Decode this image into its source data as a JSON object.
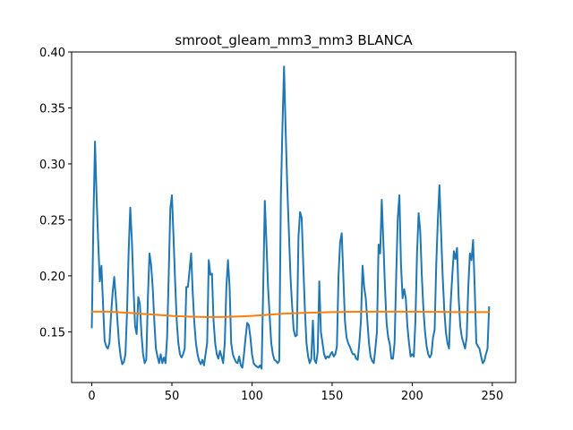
{
  "chart_data": {
    "type": "line",
    "title": "smroot_gleam_mm3_mm3 BLANCA",
    "xlabel": "",
    "ylabel": "",
    "xlim": [
      -12.6,
      264.6
    ],
    "ylim": [
      0.1047,
      0.4
    ],
    "xticks": [
      0,
      50,
      100,
      150,
      200,
      250
    ],
    "yticks": [
      0.15,
      0.2,
      0.25,
      0.3,
      0.35,
      0.4
    ],
    "ytick_labels": [
      "0.15",
      "0.20",
      "0.25",
      "0.30",
      "0.35",
      "0.40"
    ],
    "grid": false,
    "legend": "none",
    "series": [
      {
        "color": "#1f77b4",
        "points": [
          [
            0,
            0.154
          ],
          [
            1,
            0.25
          ],
          [
            2,
            0.32
          ],
          [
            3,
            0.27
          ],
          [
            4,
            0.23
          ],
          [
            5,
            0.195
          ],
          [
            6,
            0.209
          ],
          [
            7,
            0.175
          ],
          [
            8,
            0.142
          ],
          [
            9,
            0.137
          ],
          [
            10,
            0.135
          ],
          [
            11,
            0.14
          ],
          [
            12,
            0.165
          ],
          [
            13,
            0.185
          ],
          [
            14,
            0.199
          ],
          [
            15,
            0.18
          ],
          [
            16,
            0.16
          ],
          [
            17,
            0.14
          ],
          [
            18,
            0.128
          ],
          [
            19,
            0.121
          ],
          [
            20,
            0.123
          ],
          [
            21,
            0.13
          ],
          [
            22,
            0.168
          ],
          [
            23,
            0.222
          ],
          [
            24,
            0.261
          ],
          [
            25,
            0.232
          ],
          [
            26,
            0.19
          ],
          [
            27,
            0.155
          ],
          [
            28,
            0.148
          ],
          [
            29,
            0.181
          ],
          [
            30,
            0.175
          ],
          [
            31,
            0.148
          ],
          [
            32,
            0.13
          ],
          [
            33,
            0.122
          ],
          [
            34,
            0.125
          ],
          [
            35,
            0.18
          ],
          [
            36,
            0.22
          ],
          [
            37,
            0.21
          ],
          [
            38,
            0.19
          ],
          [
            39,
            0.16
          ],
          [
            40,
            0.135
          ],
          [
            41,
            0.128
          ],
          [
            42,
            0.122
          ],
          [
            43,
            0.13
          ],
          [
            44,
            0.122
          ],
          [
            45,
            0.127
          ],
          [
            46,
            0.122
          ],
          [
            47,
            0.145
          ],
          [
            48,
            0.2
          ],
          [
            49,
            0.26
          ],
          [
            50,
            0.272
          ],
          [
            51,
            0.235
          ],
          [
            52,
            0.195
          ],
          [
            53,
            0.16
          ],
          [
            54,
            0.14
          ],
          [
            55,
            0.13
          ],
          [
            56,
            0.127
          ],
          [
            57,
            0.13
          ],
          [
            58,
            0.135
          ],
          [
            59,
            0.19
          ],
          [
            60,
            0.19
          ],
          [
            61,
            0.205
          ],
          [
            62,
            0.22
          ],
          [
            63,
            0.185
          ],
          [
            64,
            0.158
          ],
          [
            65,
            0.14
          ],
          [
            66,
            0.13
          ],
          [
            67,
            0.124
          ],
          [
            68,
            0.121
          ],
          [
            69,
            0.125
          ],
          [
            70,
            0.12
          ],
          [
            71,
            0.13
          ],
          [
            72,
            0.14
          ],
          [
            73,
            0.214
          ],
          [
            74,
            0.201
          ],
          [
            75,
            0.202
          ],
          [
            76,
            0.16
          ],
          [
            77,
            0.14
          ],
          [
            78,
            0.13
          ],
          [
            79,
            0.126
          ],
          [
            80,
            0.133
          ],
          [
            81,
            0.128
          ],
          [
            82,
            0.122
          ],
          [
            83,
            0.14
          ],
          [
            84,
            0.19
          ],
          [
            85,
            0.214
          ],
          [
            86,
            0.19
          ],
          [
            87,
            0.14
          ],
          [
            88,
            0.13
          ],
          [
            89,
            0.126
          ],
          [
            90,
            0.123
          ],
          [
            91,
            0.122
          ],
          [
            92,
            0.128
          ],
          [
            93,
            0.12
          ],
          [
            94,
            0.118
          ],
          [
            95,
            0.13
          ],
          [
            96,
            0.145
          ],
          [
            97,
            0.158
          ],
          [
            98,
            0.156
          ],
          [
            99,
            0.145
          ],
          [
            100,
            0.13
          ],
          [
            101,
            0.122
          ],
          [
            102,
            0.12
          ],
          [
            103,
            0.119
          ],
          [
            104,
            0.118
          ],
          [
            105,
            0.12
          ],
          [
            106,
            0.117
          ],
          [
            107,
            0.19
          ],
          [
            108,
            0.267
          ],
          [
            109,
            0.23
          ],
          [
            110,
            0.19
          ],
          [
            111,
            0.165
          ],
          [
            112,
            0.14
          ],
          [
            113,
            0.13
          ],
          [
            114,
            0.125
          ],
          [
            115,
            0.124
          ],
          [
            116,
            0.122
          ],
          [
            117,
            0.124
          ],
          [
            118,
            0.27
          ],
          [
            119,
            0.333
          ],
          [
            120,
            0.387
          ],
          [
            121,
            0.33
          ],
          [
            122,
            0.28
          ],
          [
            123,
            0.24
          ],
          [
            124,
            0.2
          ],
          [
            125,
            0.174
          ],
          [
            126,
            0.152
          ],
          [
            127,
            0.146
          ],
          [
            128,
            0.147
          ],
          [
            129,
            0.235
          ],
          [
            130,
            0.257
          ],
          [
            131,
            0.252
          ],
          [
            132,
            0.21
          ],
          [
            133,
            0.17
          ],
          [
            134,
            0.14
          ],
          [
            135,
            0.128
          ],
          [
            136,
            0.122
          ],
          [
            137,
            0.126
          ],
          [
            138,
            0.16
          ],
          [
            139,
            0.125
          ],
          [
            140,
            0.122
          ],
          [
            141,
            0.132
          ],
          [
            142,
            0.195
          ],
          [
            143,
            0.15
          ],
          [
            144,
            0.14
          ],
          [
            145,
            0.13
          ],
          [
            146,
            0.126
          ],
          [
            147,
            0.128
          ],
          [
            148,
            0.127
          ],
          [
            149,
            0.13
          ],
          [
            150,
            0.132
          ],
          [
            151,
            0.128
          ],
          [
            152,
            0.13
          ],
          [
            153,
            0.137
          ],
          [
            154,
            0.2
          ],
          [
            155,
            0.23
          ],
          [
            156,
            0.238
          ],
          [
            157,
            0.2
          ],
          [
            158,
            0.16
          ],
          [
            159,
            0.145
          ],
          [
            160,
            0.14
          ],
          [
            161,
            0.137
          ],
          [
            162,
            0.133
          ],
          [
            163,
            0.13
          ],
          [
            164,
            0.13
          ],
          [
            165,
            0.126
          ],
          [
            166,
            0.125
          ],
          [
            167,
            0.14
          ],
          [
            168,
            0.16
          ],
          [
            169,
            0.209
          ],
          [
            170,
            0.19
          ],
          [
            171,
            0.18
          ],
          [
            172,
            0.16
          ],
          [
            173,
            0.14
          ],
          [
            174,
            0.128
          ],
          [
            175,
            0.124
          ],
          [
            176,
            0.122
          ],
          [
            177,
            0.135
          ],
          [
            178,
            0.15
          ],
          [
            179,
            0.228
          ],
          [
            180,
            0.22
          ],
          [
            181,
            0.268
          ],
          [
            182,
            0.23
          ],
          [
            183,
            0.19
          ],
          [
            184,
            0.158
          ],
          [
            185,
            0.145
          ],
          [
            186,
            0.139
          ],
          [
            187,
            0.126
          ],
          [
            188,
            0.126
          ],
          [
            189,
            0.14
          ],
          [
            190,
            0.2
          ],
          [
            191,
            0.252
          ],
          [
            192,
            0.272
          ],
          [
            193,
            0.21
          ],
          [
            194,
            0.18
          ],
          [
            195,
            0.188
          ],
          [
            196,
            0.18
          ],
          [
            197,
            0.155
          ],
          [
            198,
            0.14
          ],
          [
            199,
            0.128
          ],
          [
            200,
            0.13
          ],
          [
            201,
            0.128
          ],
          [
            202,
            0.16
          ],
          [
            203,
            0.22
          ],
          [
            204,
            0.256
          ],
          [
            205,
            0.24
          ],
          [
            206,
            0.2
          ],
          [
            207,
            0.17
          ],
          [
            208,
            0.15
          ],
          [
            209,
            0.137
          ],
          [
            210,
            0.13
          ],
          [
            211,
            0.127
          ],
          [
            212,
            0.13
          ],
          [
            213,
            0.145
          ],
          [
            214,
            0.152
          ],
          [
            215,
            0.21
          ],
          [
            216,
            0.25
          ],
          [
            217,
            0.281
          ],
          [
            218,
            0.24
          ],
          [
            219,
            0.2
          ],
          [
            220,
            0.17
          ],
          [
            221,
            0.15
          ],
          [
            222,
            0.14
          ],
          [
            223,
            0.135
          ],
          [
            224,
            0.175
          ],
          [
            225,
            0.2
          ],
          [
            226,
            0.222
          ],
          [
            227,
            0.215
          ],
          [
            228,
            0.225
          ],
          [
            229,
            0.18
          ],
          [
            230,
            0.155
          ],
          [
            231,
            0.145
          ],
          [
            232,
            0.14
          ],
          [
            233,
            0.135
          ],
          [
            234,
            0.145
          ],
          [
            235,
            0.19
          ],
          [
            236,
            0.22
          ],
          [
            237,
            0.214
          ],
          [
            238,
            0.232
          ],
          [
            239,
            0.19
          ],
          [
            240,
            0.14
          ],
          [
            241,
            0.137
          ],
          [
            242,
            0.135
          ],
          [
            243,
            0.128
          ],
          [
            244,
            0.122
          ],
          [
            245,
            0.124
          ],
          [
            246,
            0.13
          ],
          [
            247,
            0.135
          ],
          [
            248,
            0.172
          ]
        ]
      },
      {
        "color": "#ff7f0e",
        "points": [
          [
            0,
            0.168
          ],
          [
            10,
            0.168
          ],
          [
            20,
            0.1672
          ],
          [
            30,
            0.1662
          ],
          [
            40,
            0.1652
          ],
          [
            50,
            0.1642
          ],
          [
            60,
            0.1636
          ],
          [
            70,
            0.1632
          ],
          [
            80,
            0.1632
          ],
          [
            90,
            0.1636
          ],
          [
            100,
            0.1642
          ],
          [
            110,
            0.1652
          ],
          [
            120,
            0.1662
          ],
          [
            130,
            0.1668
          ],
          [
            140,
            0.1672
          ],
          [
            150,
            0.1676
          ],
          [
            160,
            0.1678
          ],
          [
            170,
            0.168
          ],
          [
            180,
            0.168
          ],
          [
            190,
            0.168
          ],
          [
            200,
            0.168
          ],
          [
            210,
            0.1678
          ],
          [
            220,
            0.1678
          ],
          [
            230,
            0.1676
          ],
          [
            240,
            0.1676
          ],
          [
            248,
            0.1676
          ]
        ]
      }
    ]
  }
}
